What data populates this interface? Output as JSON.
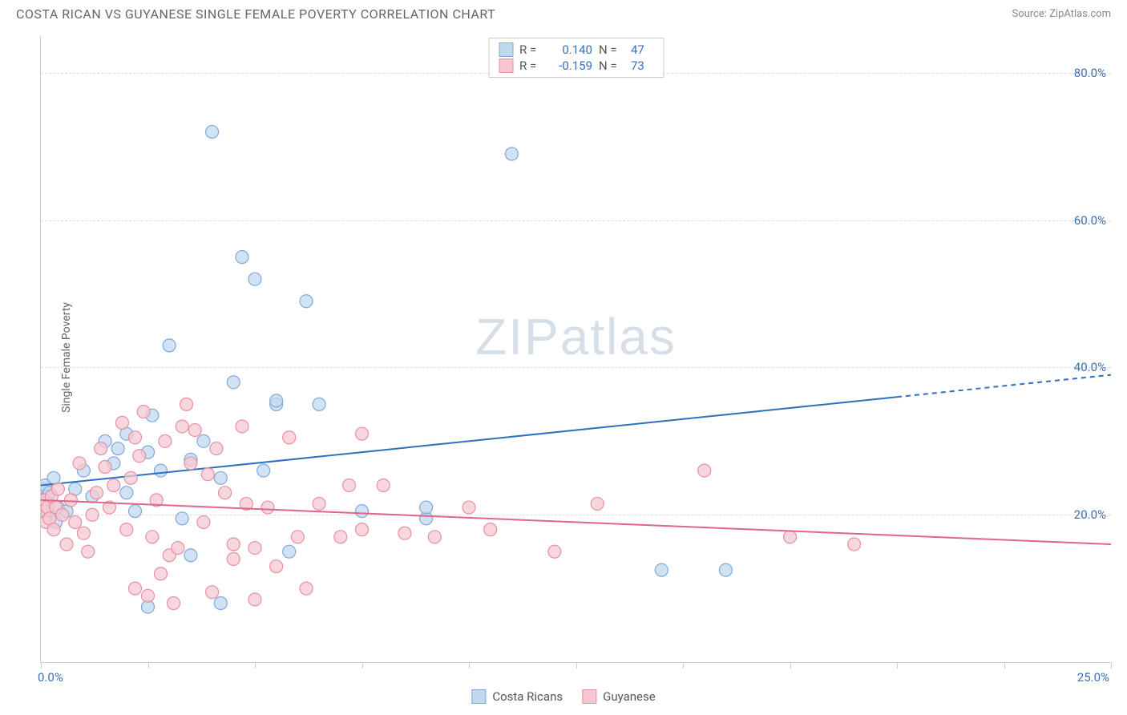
{
  "header": {
    "title": "COSTA RICAN VS GUYANESE SINGLE FEMALE POVERTY CORRELATION CHART",
    "source_prefix": "Source: ",
    "source_name": "ZipAtlas.com"
  },
  "chart": {
    "type": "scatter",
    "ylabel": "Single Female Poverty",
    "xlim": [
      0,
      25
    ],
    "ylim": [
      0,
      85
    ],
    "xticks_pct": [
      0,
      2.5,
      5,
      7.5,
      10,
      12.5,
      15,
      17.5,
      20,
      22.5,
      25
    ],
    "xtick_labels": {
      "first": "0.0%",
      "last": "25.0%"
    },
    "yticks": [
      {
        "value": 20,
        "label": "20.0%"
      },
      {
        "value": 40,
        "label": "40.0%"
      },
      {
        "value": 60,
        "label": "60.0%"
      },
      {
        "value": 80,
        "label": "80.0%"
      }
    ],
    "grid_color": "#dddddd",
    "axis_color": "#cccccc",
    "background_color": "#ffffff",
    "watermark": {
      "zip": "ZIP",
      "atlas": "atlas",
      "color": "#d6dfe8"
    },
    "series": [
      {
        "key": "costa_ricans",
        "label": "Costa Ricans",
        "marker_fill": "#c2d8f0",
        "marker_stroke": "#7fa8d9",
        "marker_radius": 8,
        "marker_opacity": 0.75,
        "line_color": "#2f6fc0",
        "line_width": 2,
        "line_start": {
          "x": 0,
          "y": 24
        },
        "line_end": {
          "x": 20,
          "y": 36
        },
        "extrapolate_end": {
          "x": 25,
          "y": 39
        },
        "stats": {
          "R": "0.140",
          "N": "47"
        },
        "points": [
          {
            "x": 0.05,
            "y": 22
          },
          {
            "x": 0.07,
            "y": 23.5
          },
          {
            "x": 0.1,
            "y": 24
          },
          {
            "x": 0.12,
            "y": 21.5
          },
          {
            "x": 0.15,
            "y": 20.5
          },
          {
            "x": 0.15,
            "y": 22.5
          },
          {
            "x": 0.2,
            "y": 23
          },
          {
            "x": 0.3,
            "y": 25
          },
          {
            "x": 0.35,
            "y": 19
          },
          {
            "x": 0.4,
            "y": 21
          },
          {
            "x": 0.6,
            "y": 20.5
          },
          {
            "x": 0.8,
            "y": 23.5
          },
          {
            "x": 1.5,
            "y": 30
          },
          {
            "x": 1.7,
            "y": 27
          },
          {
            "x": 1.8,
            "y": 29
          },
          {
            "x": 2.0,
            "y": 23
          },
          {
            "x": 2.0,
            "y": 31
          },
          {
            "x": 2.2,
            "y": 20.5
          },
          {
            "x": 2.5,
            "y": 28.5
          },
          {
            "x": 2.5,
            "y": 7.5
          },
          {
            "x": 2.6,
            "y": 33.5
          },
          {
            "x": 2.8,
            "y": 26
          },
          {
            "x": 3.0,
            "y": 43
          },
          {
            "x": 3.3,
            "y": 19.5
          },
          {
            "x": 3.5,
            "y": 14.5
          },
          {
            "x": 3.5,
            "y": 27.5
          },
          {
            "x": 4.0,
            "y": 72
          },
          {
            "x": 4.2,
            "y": 8
          },
          {
            "x": 4.5,
            "y": 38
          },
          {
            "x": 4.7,
            "y": 55
          },
          {
            "x": 5.0,
            "y": 52
          },
          {
            "x": 5.2,
            "y": 26
          },
          {
            "x": 5.5,
            "y": 35
          },
          {
            "x": 5.5,
            "y": 35.5
          },
          {
            "x": 5.8,
            "y": 15
          },
          {
            "x": 6.2,
            "y": 49
          },
          {
            "x": 6.5,
            "y": 35
          },
          {
            "x": 7.5,
            "y": 20.5
          },
          {
            "x": 9.0,
            "y": 19.5
          },
          {
            "x": 9.0,
            "y": 21
          },
          {
            "x": 11.0,
            "y": 69
          },
          {
            "x": 14.5,
            "y": 12.5
          },
          {
            "x": 16.0,
            "y": 12.5
          },
          {
            "x": 1.2,
            "y": 22.5
          },
          {
            "x": 1.0,
            "y": 26
          },
          {
            "x": 3.8,
            "y": 30
          },
          {
            "x": 4.2,
            "y": 25
          }
        ]
      },
      {
        "key": "guyanese",
        "label": "Guyanese",
        "marker_fill": "#f5c8d1",
        "marker_stroke": "#e78fa3",
        "marker_radius": 8,
        "marker_opacity": 0.75,
        "line_color": "#e06688",
        "line_width": 2,
        "line_start": {
          "x": 0,
          "y": 22
        },
        "line_end": {
          "x": 25,
          "y": 16
        },
        "stats": {
          "R": "-0.159",
          "N": "73"
        },
        "points": [
          {
            "x": 0.05,
            "y": 21.5
          },
          {
            "x": 0.08,
            "y": 22
          },
          {
            "x": 0.1,
            "y": 20.5
          },
          {
            "x": 0.12,
            "y": 19
          },
          {
            "x": 0.15,
            "y": 21
          },
          {
            "x": 0.2,
            "y": 19.5
          },
          {
            "x": 0.25,
            "y": 22.5
          },
          {
            "x": 0.3,
            "y": 18
          },
          {
            "x": 0.35,
            "y": 21
          },
          {
            "x": 0.5,
            "y": 20
          },
          {
            "x": 0.6,
            "y": 16
          },
          {
            "x": 0.7,
            "y": 22
          },
          {
            "x": 0.8,
            "y": 19
          },
          {
            "x": 1.0,
            "y": 17.5
          },
          {
            "x": 1.1,
            "y": 15
          },
          {
            "x": 1.3,
            "y": 23
          },
          {
            "x": 1.4,
            "y": 29
          },
          {
            "x": 1.5,
            "y": 26.5
          },
          {
            "x": 1.7,
            "y": 24
          },
          {
            "x": 1.9,
            "y": 32.5
          },
          {
            "x": 2.0,
            "y": 18
          },
          {
            "x": 2.1,
            "y": 25
          },
          {
            "x": 2.2,
            "y": 10
          },
          {
            "x": 2.3,
            "y": 28
          },
          {
            "x": 2.4,
            "y": 34
          },
          {
            "x": 2.5,
            "y": 9
          },
          {
            "x": 2.6,
            "y": 17
          },
          {
            "x": 2.7,
            "y": 22
          },
          {
            "x": 2.8,
            "y": 12
          },
          {
            "x": 2.9,
            "y": 30
          },
          {
            "x": 3.0,
            "y": 14.5
          },
          {
            "x": 3.2,
            "y": 15.5
          },
          {
            "x": 3.3,
            "y": 32
          },
          {
            "x": 3.4,
            "y": 35
          },
          {
            "x": 3.5,
            "y": 27
          },
          {
            "x": 3.6,
            "y": 31.5
          },
          {
            "x": 3.8,
            "y": 19
          },
          {
            "x": 3.9,
            "y": 25.5
          },
          {
            "x": 4.0,
            "y": 9.5
          },
          {
            "x": 4.1,
            "y": 29
          },
          {
            "x": 4.3,
            "y": 23
          },
          {
            "x": 4.5,
            "y": 14
          },
          {
            "x": 4.5,
            "y": 16
          },
          {
            "x": 4.7,
            "y": 32
          },
          {
            "x": 4.8,
            "y": 21.5
          },
          {
            "x": 5.0,
            "y": 15.5
          },
          {
            "x": 5.0,
            "y": 8.5
          },
          {
            "x": 5.3,
            "y": 21
          },
          {
            "x": 5.5,
            "y": 13
          },
          {
            "x": 5.8,
            "y": 30.5
          },
          {
            "x": 6.0,
            "y": 17
          },
          {
            "x": 6.2,
            "y": 10
          },
          {
            "x": 6.5,
            "y": 21.5
          },
          {
            "x": 7.0,
            "y": 17
          },
          {
            "x": 7.2,
            "y": 24
          },
          {
            "x": 7.5,
            "y": 31
          },
          {
            "x": 7.5,
            "y": 18
          },
          {
            "x": 8.0,
            "y": 24
          },
          {
            "x": 8.5,
            "y": 17.5
          },
          {
            "x": 9.2,
            "y": 17
          },
          {
            "x": 10.0,
            "y": 21
          },
          {
            "x": 10.5,
            "y": 18
          },
          {
            "x": 12.0,
            "y": 15
          },
          {
            "x": 13.0,
            "y": 21.5
          },
          {
            "x": 15.5,
            "y": 26
          },
          {
            "x": 17.5,
            "y": 17
          },
          {
            "x": 19.0,
            "y": 16
          },
          {
            "x": 1.2,
            "y": 20
          },
          {
            "x": 0.9,
            "y": 27
          },
          {
            "x": 1.6,
            "y": 21
          },
          {
            "x": 2.2,
            "y": 30.5
          },
          {
            "x": 3.1,
            "y": 8
          },
          {
            "x": 0.4,
            "y": 23.5
          }
        ]
      }
    ]
  },
  "legend": {
    "items": [
      {
        "label": "Costa Ricans",
        "fill": "#c2d8f0",
        "stroke": "#7fa8d9"
      },
      {
        "label": "Guyanese",
        "fill": "#f5c8d1",
        "stroke": "#e78fa3"
      }
    ]
  }
}
